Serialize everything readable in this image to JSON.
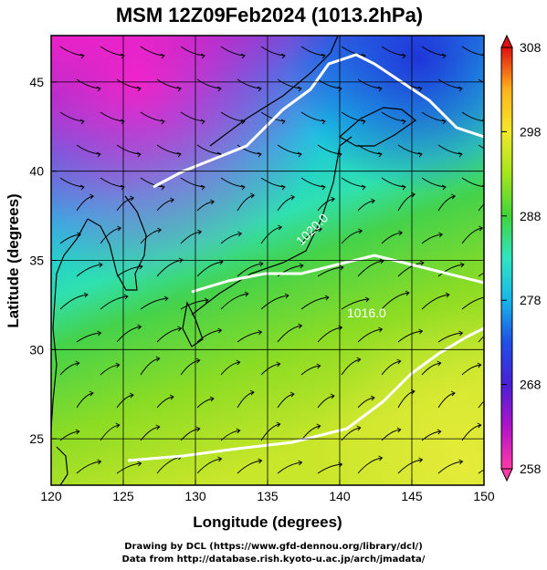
{
  "title": "MSM 12Z09Feb2024 (1013.2hPa)",
  "map": {
    "x_axis": {
      "label": "Longitude (degrees)",
      "min": 120,
      "max": 150,
      "ticks": [
        "120",
        "125",
        "130",
        "135",
        "140",
        "145",
        "150"
      ]
    },
    "y_axis": {
      "label": "Latitude  (degrees)",
      "min": 22.4,
      "max": 47.6,
      "ticks": [
        "25",
        "30",
        "35",
        "40",
        "45"
      ]
    },
    "field": "temperature (K) shaded, wind streamlines, white contours",
    "contour_labels": [
      "1020.0",
      "1016.0"
    ]
  },
  "colorbar": {
    "min": 258,
    "max": 308,
    "labels": [
      "308",
      "298",
      "288",
      "278",
      "268",
      "258"
    ],
    "colors": [
      "#ff3aa8",
      "#b013c8",
      "#4b1fd8",
      "#1f4fe6",
      "#16b7e8",
      "#2fe6c4",
      "#3fd43a",
      "#a4e61c",
      "#f2e82a",
      "#ffb31c",
      "#ff5a1c",
      "#e01010"
    ]
  },
  "credits": {
    "line1": "Drawing by DCL (https://www.gfd-dennou.org/library/dcl/)",
    "line2": "Data from http://database.rish.kyoto-u.ac.jp/arch/jmadata/"
  }
}
